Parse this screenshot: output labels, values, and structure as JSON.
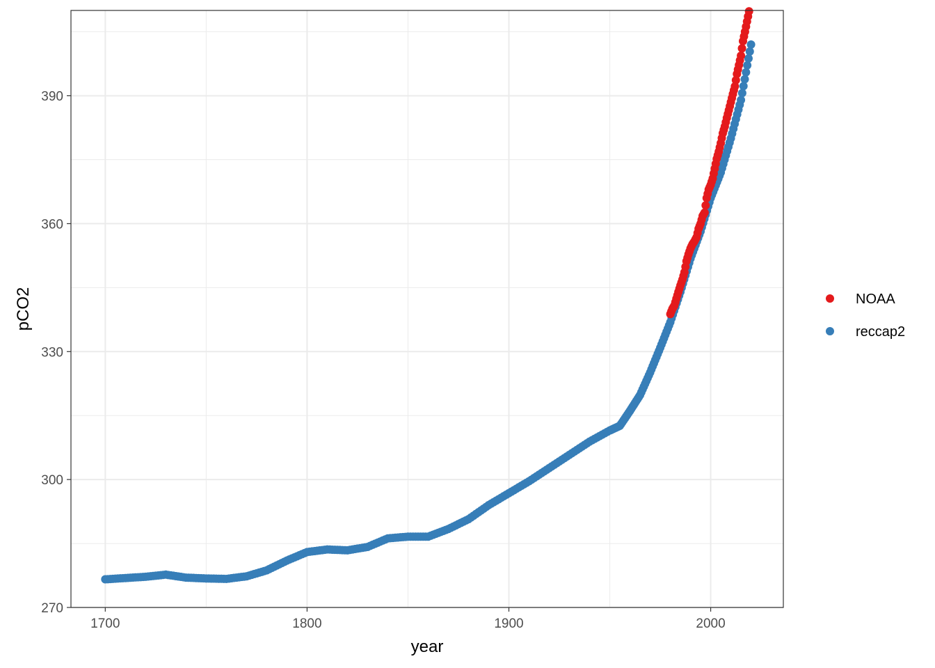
{
  "chart_data": {
    "type": "scatter",
    "xlabel": "year",
    "ylabel": "pCO2",
    "xlim": [
      1683,
      2036
    ],
    "ylim": [
      270,
      410
    ],
    "x_ticks": [
      1700,
      1800,
      1900,
      2000
    ],
    "y_ticks": [
      270,
      300,
      330,
      360,
      390
    ],
    "grid": true,
    "legend_position": "right",
    "series": [
      {
        "name": "NOAA",
        "color": "#E41A1C",
        "x": [
          1980,
          1981,
          1982,
          1983,
          1984,
          1985,
          1986,
          1987,
          1988,
          1989,
          1990,
          1991,
          1992,
          1993,
          1994,
          1995,
          1996,
          1997,
          1998,
          1999,
          2000,
          2001,
          2002,
          2003,
          2004,
          2005,
          2006,
          2007,
          2008,
          2009,
          2010,
          2011,
          2012,
          2013,
          2014,
          2015,
          2016,
          2017,
          2018,
          2019
        ],
        "y": [
          338.8,
          340.0,
          340.8,
          342.4,
          344.0,
          345.5,
          346.9,
          348.6,
          351.2,
          352.8,
          354.2,
          355.2,
          355.9,
          356.8,
          358.8,
          360.0,
          361.8,
          362.6,
          366.0,
          368.0,
          369.1,
          370.6,
          372.9,
          375.2,
          376.9,
          378.9,
          381.2,
          382.8,
          384.8,
          386.6,
          388.5,
          390.4,
          392.2,
          395.1,
          397.2,
          399.4,
          402.8,
          405.0,
          407.4,
          409.8
        ]
      },
      {
        "name": "reccap2",
        "color": "#377EB8",
        "x": [
          1700,
          1710,
          1720,
          1730,
          1740,
          1750,
          1760,
          1770,
          1780,
          1790,
          1800,
          1810,
          1820,
          1830,
          1840,
          1850,
          1860,
          1870,
          1880,
          1890,
          1900,
          1910,
          1920,
          1930,
          1940,
          1950,
          1955,
          1960,
          1965,
          1970,
          1975,
          1980,
          1985,
          1990,
          1995,
          2000,
          2005,
          2010,
          2015,
          2020
        ],
        "y": [
          276.6,
          276.9,
          277.2,
          277.7,
          277.0,
          276.8,
          276.7,
          277.3,
          278.7,
          281.0,
          283.0,
          283.6,
          283.4,
          284.2,
          286.2,
          286.6,
          286.6,
          288.4,
          290.7,
          294.0,
          296.8,
          299.6,
          302.7,
          305.8,
          308.9,
          311.5,
          312.6,
          316.1,
          319.8,
          325.1,
          330.9,
          336.9,
          344.0,
          351.8,
          358.2,
          366.0,
          372.0,
          380.0,
          389.0,
          402.0
        ]
      }
    ]
  }
}
